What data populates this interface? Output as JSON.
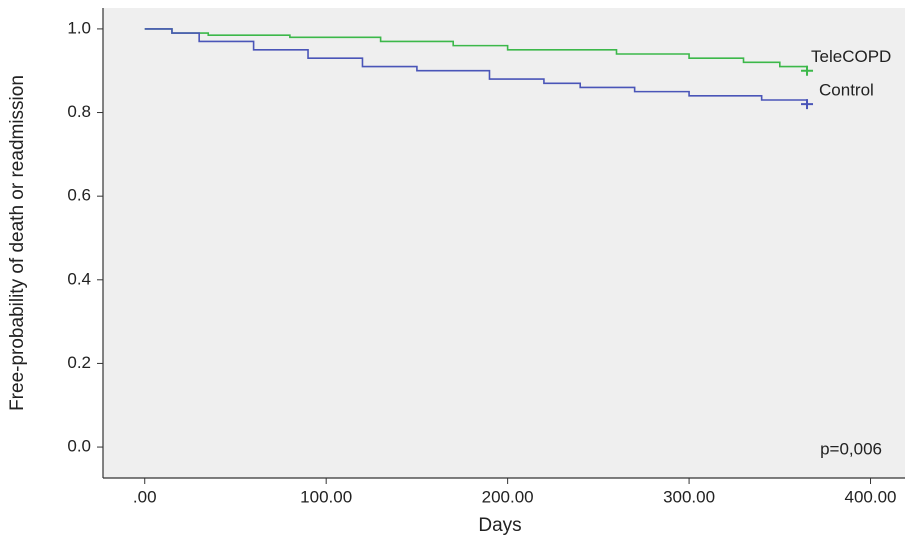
{
  "chart_data": {
    "type": "step",
    "x_label": "Days",
    "y_label": "Free-probability of death or readmission",
    "annotation": "p=0,006",
    "xlim": [
      -23,
      419
    ],
    "ylim": [
      -0.074,
      1.05
    ],
    "xticks": [
      {
        "value": 0,
        "label": ".00"
      },
      {
        "value": 100,
        "label": "100.00"
      },
      {
        "value": 200,
        "label": "200.00"
      },
      {
        "value": 300,
        "label": "300.00"
      },
      {
        "value": 400,
        "label": "400.00"
      }
    ],
    "yticks": [
      {
        "value": 0,
        "label": "0.0"
      },
      {
        "value": 0.2,
        "label": "0.2"
      },
      {
        "value": 0.4,
        "label": "0.4"
      },
      {
        "value": 0.6,
        "label": "0.6"
      },
      {
        "value": 0.8,
        "label": "0.8"
      },
      {
        "value": 1,
        "label": "1.0"
      }
    ],
    "series": [
      {
        "name": "TeleCOPD",
        "color": "#3cb84a",
        "x": [
          0,
          15,
          35,
          80,
          130,
          170,
          200,
          260,
          300,
          330,
          350,
          365
        ],
        "values": [
          1.0,
          0.99,
          0.985,
          0.98,
          0.97,
          0.96,
          0.95,
          0.94,
          0.93,
          0.92,
          0.91,
          0.9
        ]
      },
      {
        "name": "Control",
        "color": "#4a55b8",
        "x": [
          0,
          15,
          30,
          60,
          90,
          120,
          150,
          190,
          220,
          240,
          270,
          300,
          340,
          365
        ],
        "values": [
          1.0,
          0.99,
          0.97,
          0.95,
          0.93,
          0.91,
          0.9,
          0.88,
          0.87,
          0.86,
          0.85,
          0.84,
          0.83,
          0.82
        ]
      }
    ]
  }
}
